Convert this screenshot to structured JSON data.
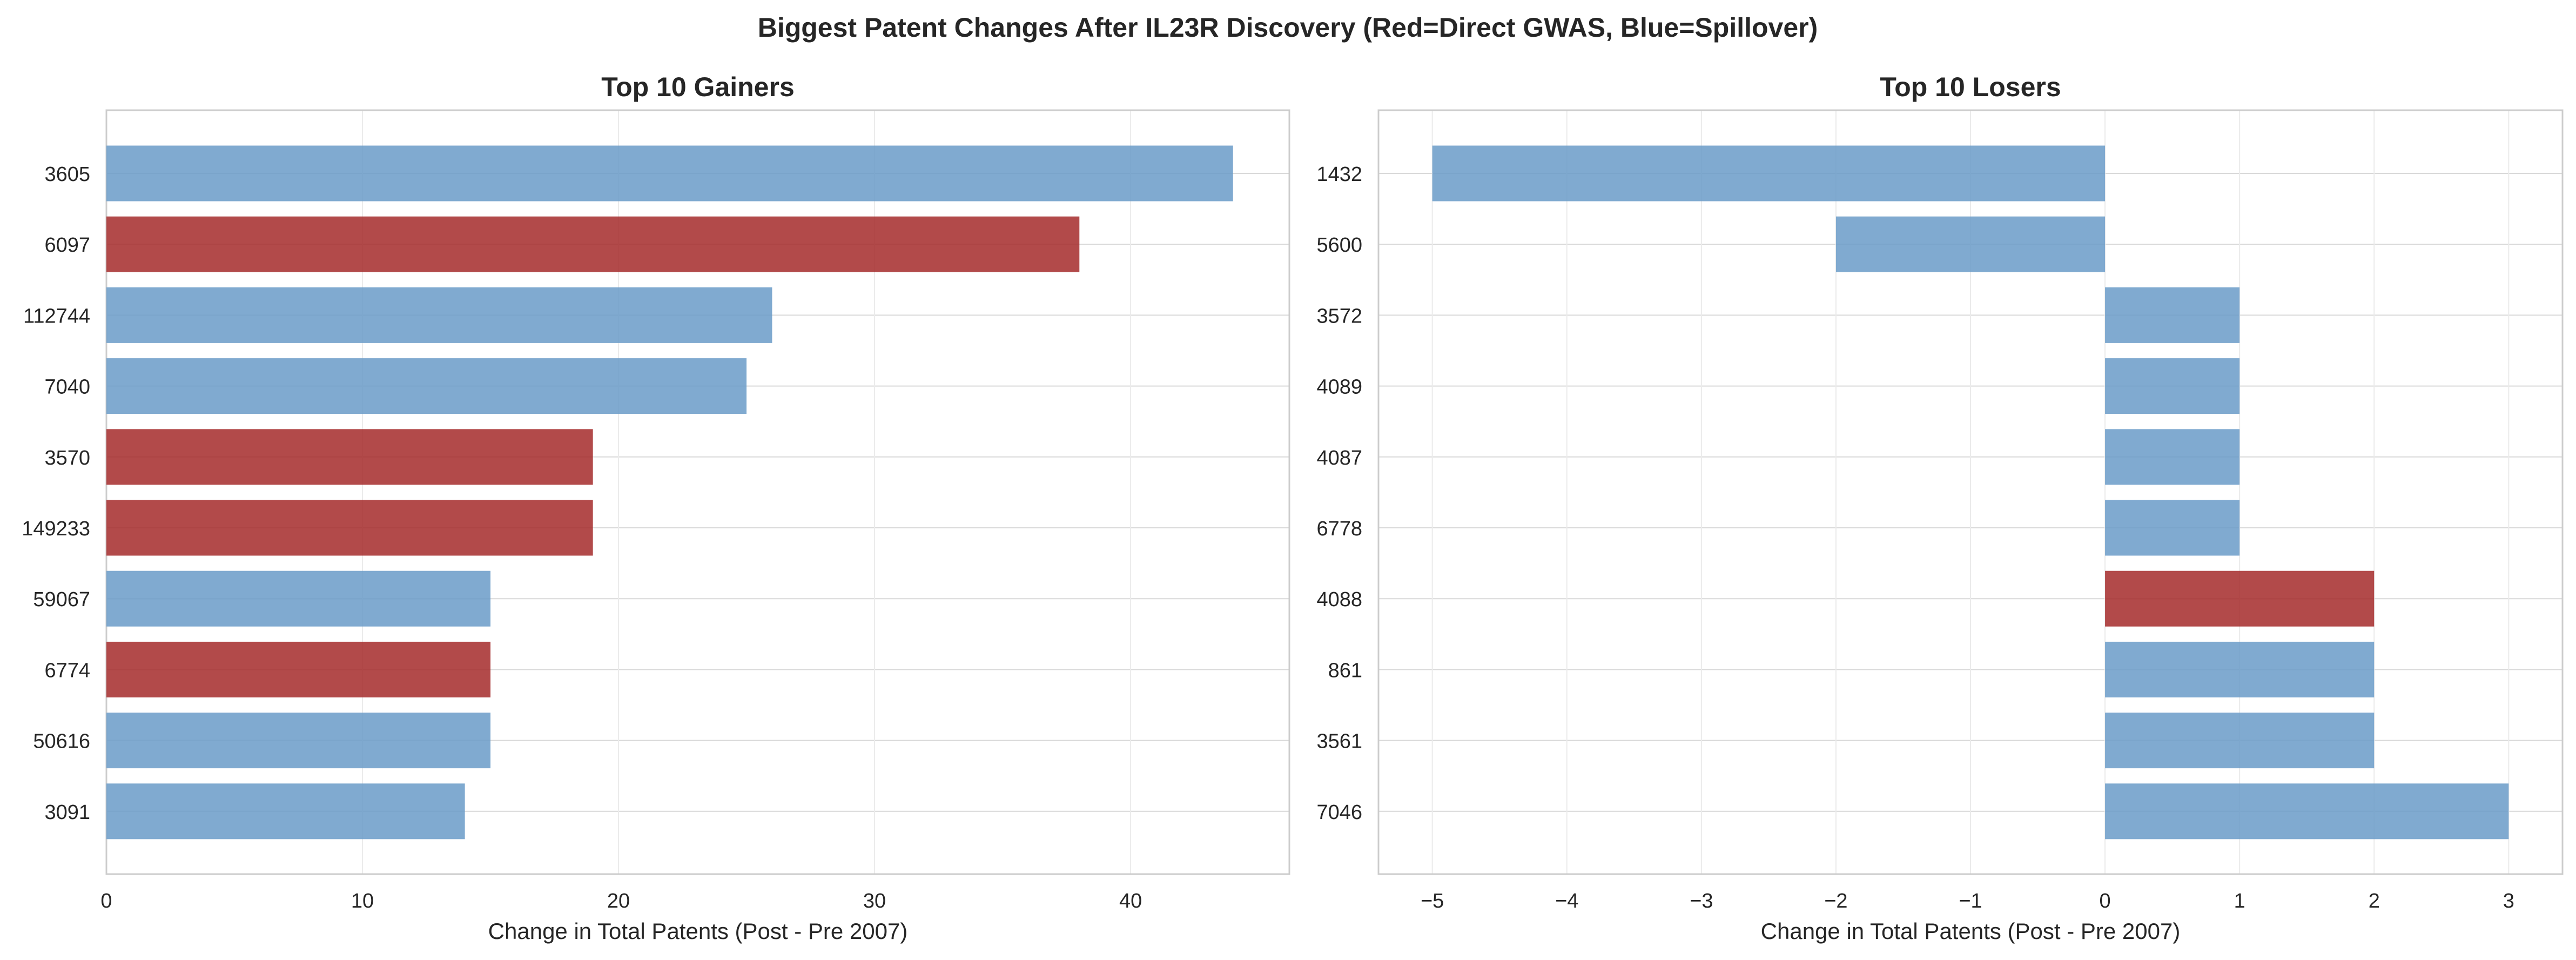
{
  "title": "Biggest Patent Changes After IL23R Discovery (Red=Direct GWAS, Blue=Spillover)",
  "colors": {
    "direct": "#a52a2a",
    "spillover": "#6a9bc8",
    "grid": "#d9d9d9",
    "frame": "#cccccc"
  },
  "chart_data": [
    {
      "type": "bar",
      "orientation": "horizontal",
      "title": "Top 10 Gainers",
      "xlabel": "Change in Total Patents (Post - Pre 2007)",
      "ylabel": "",
      "xlim": [
        0,
        46.2
      ],
      "xticks": [
        0,
        10,
        20,
        30,
        40
      ],
      "grid": true,
      "categories": [
        "3605",
        "6097",
        "112744",
        "7040",
        "3570",
        "149233",
        "59067",
        "6774",
        "50616",
        "3091"
      ],
      "values": [
        44,
        38,
        26,
        25,
        19,
        19,
        15,
        15,
        15,
        14
      ],
      "groups": [
        "Spillover",
        "Direct GWAS",
        "Spillover",
        "Spillover",
        "Direct GWAS",
        "Direct GWAS",
        "Spillover",
        "Direct GWAS",
        "Spillover",
        "Spillover"
      ]
    },
    {
      "type": "bar",
      "orientation": "horizontal",
      "title": "Top 10 Losers",
      "xlabel": "Change in Total Patents (Post - Pre 2007)",
      "ylabel": "",
      "xlim": [
        -5.4,
        3.4
      ],
      "xticks": [
        -5,
        -4,
        -3,
        -2,
        -1,
        0,
        1,
        2,
        3
      ],
      "grid": true,
      "categories": [
        "1432",
        "5600",
        "3572",
        "4089",
        "4087",
        "6778",
        "4088",
        "861",
        "3561",
        "7046"
      ],
      "values": [
        -5,
        -2,
        1,
        1,
        1,
        1,
        2,
        2,
        2,
        3
      ],
      "groups": [
        "Spillover",
        "Spillover",
        "Spillover",
        "Spillover",
        "Spillover",
        "Spillover",
        "Direct GWAS",
        "Spillover",
        "Spillover",
        "Spillover"
      ]
    }
  ]
}
